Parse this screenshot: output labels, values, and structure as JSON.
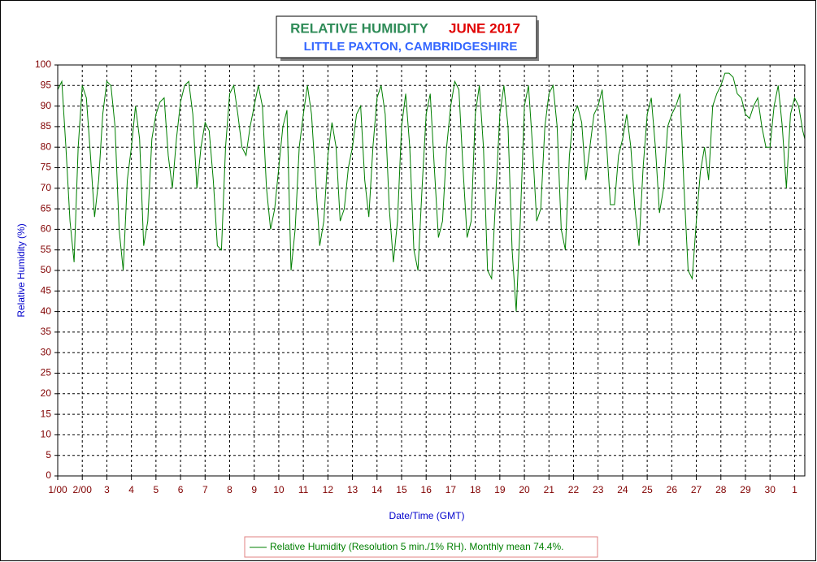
{
  "chart_data": {
    "type": "line",
    "title": "RELATIVE HUMIDITY",
    "title_date": "JUNE 2017",
    "subtitle": "LITTLE PAXTON, CAMBRIDGESHIRE",
    "xlabel": "Date/Time (GMT)",
    "ylabel": "Relative Humidity (%)",
    "xlim": [
      0,
      730
    ],
    "ylim": [
      0,
      100
    ],
    "xticks": [
      {
        "value": 0,
        "label": "1/00"
      },
      {
        "value": 24,
        "label": "2/00"
      },
      {
        "value": 48,
        "label": "3"
      },
      {
        "value": 72,
        "label": "4"
      },
      {
        "value": 96,
        "label": "5"
      },
      {
        "value": 120,
        "label": "6"
      },
      {
        "value": 144,
        "label": "7"
      },
      {
        "value": 168,
        "label": "8"
      },
      {
        "value": 192,
        "label": "9"
      },
      {
        "value": 216,
        "label": "10"
      },
      {
        "value": 240,
        "label": "11"
      },
      {
        "value": 264,
        "label": "12"
      },
      {
        "value": 288,
        "label": "13"
      },
      {
        "value": 312,
        "label": "14"
      },
      {
        "value": 336,
        "label": "15"
      },
      {
        "value": 360,
        "label": "16"
      },
      {
        "value": 384,
        "label": "17"
      },
      {
        "value": 408,
        "label": "18"
      },
      {
        "value": 432,
        "label": "19"
      },
      {
        "value": 456,
        "label": "20"
      },
      {
        "value": 480,
        "label": "21"
      },
      {
        "value": 504,
        "label": "22"
      },
      {
        "value": 528,
        "label": "23"
      },
      {
        "value": 552,
        "label": "24"
      },
      {
        "value": 576,
        "label": "25"
      },
      {
        "value": 600,
        "label": "26"
      },
      {
        "value": 624,
        "label": "27"
      },
      {
        "value": 648,
        "label": "28"
      },
      {
        "value": 672,
        "label": "29"
      },
      {
        "value": 696,
        "label": "30"
      },
      {
        "value": 720,
        "label": "1"
      }
    ],
    "yticks": [
      0,
      5,
      10,
      15,
      20,
      25,
      30,
      35,
      40,
      45,
      50,
      55,
      60,
      65,
      70,
      75,
      80,
      85,
      90,
      95,
      100
    ],
    "grid": true,
    "x": [
      0,
      4,
      8,
      12,
      16,
      20,
      24,
      28,
      32,
      36,
      40,
      44,
      48,
      52,
      56,
      60,
      64,
      68,
      72,
      76,
      80,
      84,
      88,
      92,
      96,
      100,
      104,
      108,
      112,
      116,
      120,
      124,
      128,
      132,
      136,
      140,
      144,
      148,
      152,
      156,
      160,
      164,
      168,
      172,
      176,
      180,
      184,
      188,
      192,
      196,
      200,
      204,
      208,
      212,
      216,
      220,
      224,
      228,
      232,
      236,
      240,
      244,
      248,
      252,
      256,
      260,
      264,
      268,
      272,
      276,
      280,
      284,
      288,
      292,
      296,
      300,
      304,
      308,
      312,
      316,
      320,
      324,
      328,
      332,
      336,
      340,
      344,
      348,
      352,
      356,
      360,
      364,
      368,
      372,
      376,
      380,
      384,
      388,
      392,
      396,
      400,
      404,
      408,
      412,
      416,
      420,
      424,
      428,
      432,
      436,
      440,
      444,
      448,
      452,
      456,
      460,
      464,
      468,
      472,
      476,
      480,
      484,
      488,
      492,
      496,
      500,
      504,
      508,
      512,
      516,
      520,
      524,
      528,
      532,
      536,
      540,
      544,
      548,
      552,
      556,
      560,
      564,
      568,
      572,
      576,
      580,
      584,
      588,
      592,
      596,
      600,
      604,
      608,
      612,
      616,
      620,
      624,
      628,
      632,
      636,
      640,
      644,
      648,
      652,
      656,
      660,
      664,
      668,
      672,
      676,
      680,
      684,
      688,
      692,
      696,
      700,
      704,
      708,
      712,
      716,
      720,
      724,
      728,
      730
    ],
    "series": [
      {
        "name": "Relative Humidity (Resolution 5 min./1% RH). Monthly mean 74.4%.",
        "color": "#007f00",
        "values": [
          94,
          96,
          80,
          62,
          52,
          80,
          95,
          92,
          78,
          63,
          72,
          88,
          96,
          95,
          85,
          60,
          50,
          72,
          80,
          90,
          82,
          56,
          62,
          82,
          88,
          91,
          92,
          78,
          70,
          82,
          91,
          95,
          96,
          88,
          70,
          80,
          86,
          84,
          72,
          56,
          55,
          80,
          93,
          95,
          88,
          80,
          78,
          85,
          90,
          95,
          90,
          70,
          60,
          65,
          75,
          85,
          89,
          50,
          60,
          80,
          88,
          95,
          88,
          72,
          56,
          62,
          78,
          86,
          80,
          62,
          65,
          75,
          80,
          88,
          90,
          72,
          63,
          80,
          92,
          95,
          88,
          65,
          52,
          62,
          85,
          93,
          80,
          55,
          50,
          70,
          88,
          93,
          75,
          58,
          62,
          80,
          90,
          96,
          94,
          75,
          58,
          62,
          88,
          95,
          80,
          50,
          48,
          68,
          88,
          95,
          85,
          55,
          40,
          62,
          90,
          95,
          80,
          62,
          65,
          85,
          93,
          95,
          85,
          60,
          55,
          78,
          88,
          90,
          86,
          72,
          80,
          88,
          90,
          94,
          82,
          66,
          66,
          78,
          82,
          88,
          80,
          65,
          56,
          75,
          88,
          92,
          80,
          64,
          70,
          85,
          88,
          90,
          93,
          70,
          50,
          48,
          62,
          74,
          80,
          72,
          90,
          93,
          95,
          98,
          98,
          97,
          93,
          92,
          88,
          87,
          90,
          92,
          85,
          80,
          80,
          90,
          95,
          85,
          70,
          88,
          92,
          90,
          84,
          82
        ]
      }
    ]
  }
}
